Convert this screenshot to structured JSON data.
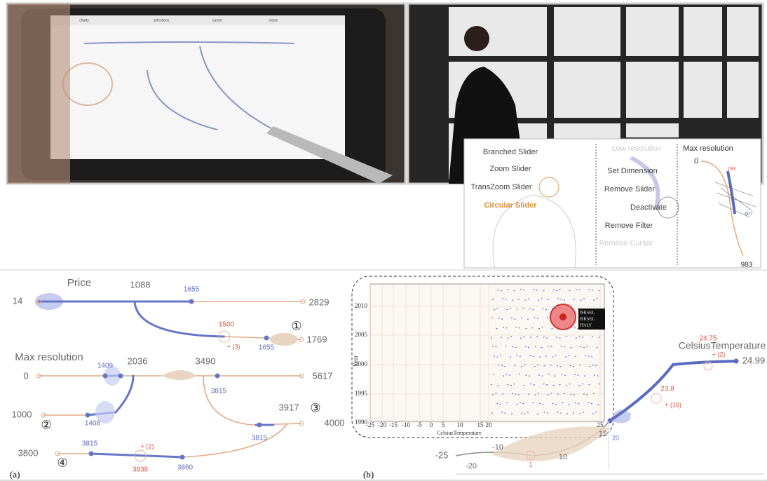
{
  "photos": {
    "tablet_menu": [
      "charts",
      "selections",
      "cursor",
      "views"
    ]
  },
  "inset": {
    "left_menu": [
      "Branched Slider",
      "Zoom Slider",
      "TransZoom Slider",
      "Circular Slider"
    ],
    "middle_menu": [
      "Low resolution",
      "Set Dimension",
      "Remove Slider",
      "Deactivate",
      "Remove Filter",
      "Remove Cursor"
    ],
    "right_title": "Max resolution",
    "right_labels": [
      "0",
      "199",
      "607",
      "983"
    ]
  },
  "panel_a": {
    "label": "(a)",
    "price": {
      "title": "Price",
      "min": "14",
      "branch": "1088",
      "cursor": "1655",
      "max": "2829",
      "sub_selected": "1500",
      "sub_count": "+ (3)",
      "sub_cursor": "1655",
      "sub_max": "1769",
      "marker": "①"
    },
    "max_resolution": {
      "title": "Max resolution",
      "min": "0",
      "cursor1": "1409",
      "branch1": "2036",
      "branch2": "3490",
      "cursor2": "3815",
      "max": "5617"
    },
    "row2": {
      "min": "1000",
      "marker": "②",
      "cursor": "1408",
      "max_label": "3917",
      "marker3": "③",
      "max": "4000",
      "cursor2": "3815"
    },
    "row4": {
      "min": "3800",
      "marker": "④",
      "cursor1": "3815",
      "count": "+ (2)",
      "selected": "3838",
      "cursor2": "3860"
    }
  },
  "panel_b": {
    "label": "(b)",
    "scatter": {
      "y_label": "Year",
      "y_ticks": [
        "2010",
        "2005",
        "2000",
        "1995",
        "1990"
      ],
      "x_label": "CelsiusTemperature",
      "x_ticks": [
        "-25",
        "-20",
        "-15",
        "-10",
        "-5",
        "0",
        "5",
        "10",
        "15",
        "20",
        "25"
      ],
      "tooltip": [
        "ISRAEL",
        "ISRAEL",
        "ITALY"
      ]
    },
    "slider": {
      "title": "CelsiusTemperature",
      "max": "24.99",
      "sel1": "24.75",
      "count1": "+ (2)",
      "sel2": "23.8",
      "count2": "+ (16)",
      "t20": "20",
      "t15": "15",
      "t10": "10",
      "tm10": "-10",
      "tm20": "-20",
      "min": "-25",
      "sel3": "1"
    }
  }
}
